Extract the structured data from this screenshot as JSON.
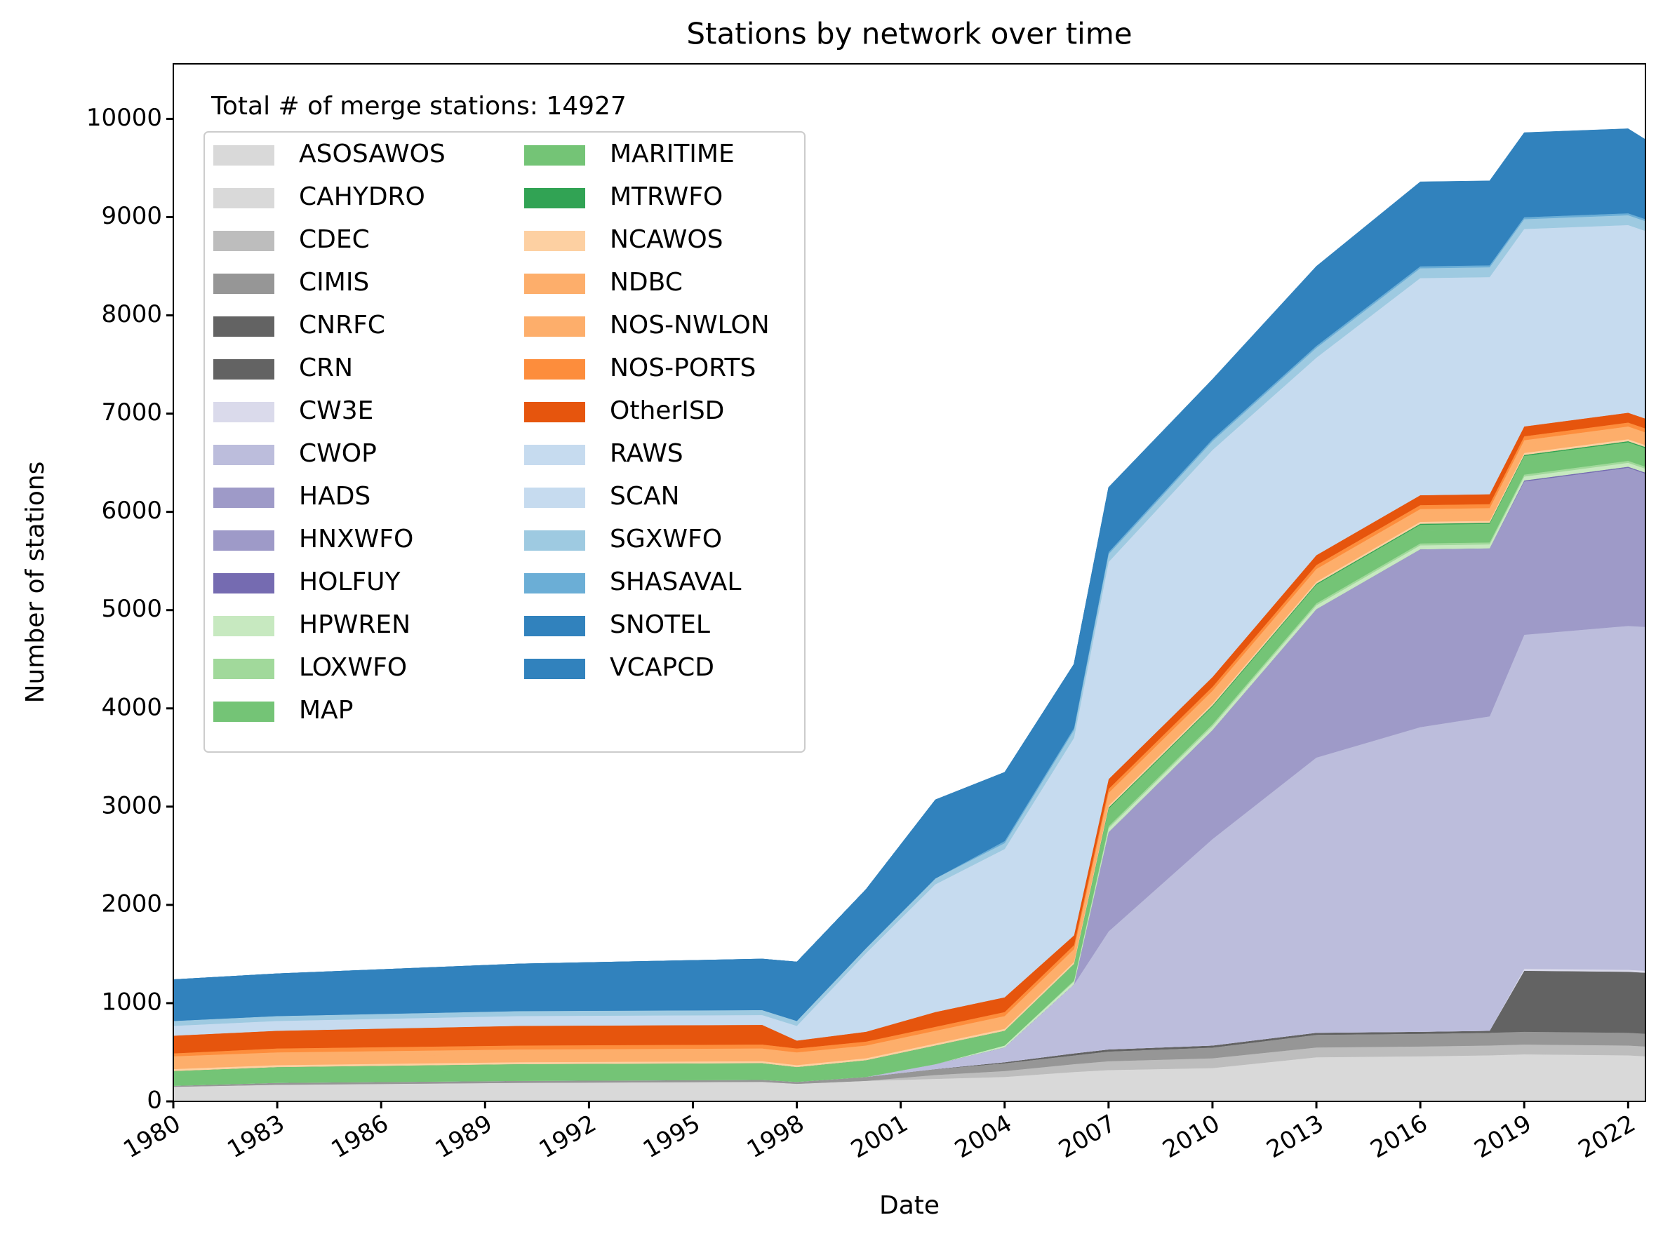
{
  "chart_data": {
    "type": "stacked_area",
    "title": "Stations by network over time",
    "xlabel": "Date",
    "ylabel": "Number of stations",
    "annotation": "Total # of merge stations: 14927",
    "legend": "upper left",
    "x": [
      1980,
      1983,
      1990,
      1997,
      1998,
      2000,
      2002,
      2004,
      2006,
      2007,
      2010,
      2013,
      2016,
      2018,
      2019,
      2022,
      2022.5
    ],
    "xlim": [
      1980,
      2022.5
    ],
    "xticks": [
      1980,
      1983,
      1986,
      1989,
      1992,
      1995,
      1998,
      2001,
      2004,
      2007,
      2010,
      2013,
      2016,
      2019,
      2022
    ],
    "ylim": [
      0,
      10560
    ],
    "yticks": [
      0,
      1000,
      2000,
      3000,
      4000,
      5000,
      6000,
      7000,
      8000,
      9000,
      10000
    ],
    "series": [
      {
        "name": "ASOSAWOS",
        "color": "#d9d9d9",
        "values": [
          150,
          170,
          190,
          200,
          180,
          210,
          230,
          250,
          300,
          320,
          340,
          440,
          450,
          460,
          470,
          460,
          450
        ]
      },
      {
        "name": "CAHYDRO",
        "color": "#d9d9d9",
        "values": [
          0,
          0,
          0,
          0,
          0,
          0,
          0,
          0,
          0,
          0,
          0,
          10,
          10,
          10,
          10,
          10,
          10
        ]
      },
      {
        "name": "CDEC",
        "color": "#bdbdbd",
        "values": [
          0,
          0,
          0,
          0,
          0,
          0,
          40,
          60,
          80,
          90,
          100,
          100,
          100,
          100,
          100,
          100,
          100
        ]
      },
      {
        "name": "CIMIS",
        "color": "#969696",
        "values": [
          10,
          20,
          20,
          20,
          20,
          40,
          60,
          80,
          90,
          100,
          110,
          130,
          130,
          130,
          130,
          130,
          130
        ]
      },
      {
        "name": "CNRFC",
        "color": "#636363",
        "values": [
          0,
          0,
          0,
          0,
          0,
          0,
          0,
          0,
          0,
          0,
          0,
          0,
          0,
          0,
          600,
          600,
          600
        ]
      },
      {
        "name": "CRN",
        "color": "#636363",
        "values": [
          0,
          0,
          0,
          0,
          0,
          0,
          0,
          10,
          20,
          20,
          20,
          20,
          20,
          20,
          20,
          20,
          20
        ]
      },
      {
        "name": "CW3E",
        "color": "#dadaeb",
        "values": [
          0,
          0,
          0,
          0,
          0,
          0,
          0,
          0,
          0,
          0,
          0,
          0,
          0,
          0,
          20,
          20,
          20
        ]
      },
      {
        "name": "CWOP",
        "color": "#bcbddc",
        "values": [
          0,
          0,
          0,
          0,
          0,
          0,
          50,
          150,
          700,
          1200,
          2100,
          2800,
          3100,
          3200,
          3400,
          3500,
          3500
        ]
      },
      {
        "name": "HADS",
        "color": "#9e9ac8",
        "values": [
          0,
          0,
          0,
          0,
          0,
          0,
          0,
          0,
          0,
          1000,
          1100,
          1500,
          1800,
          1700,
          1550,
          1600,
          1550
        ]
      },
      {
        "name": "HNXWFO",
        "color": "#9e9ac8",
        "values": [
          0,
          0,
          0,
          0,
          0,
          0,
          0,
          0,
          0,
          10,
          10,
          10,
          10,
          10,
          10,
          10,
          10
        ]
      },
      {
        "name": "HOLFUY",
        "color": "#756bb1",
        "values": [
          0,
          0,
          0,
          0,
          0,
          0,
          0,
          0,
          0,
          0,
          0,
          0,
          0,
          0,
          10,
          10,
          10
        ]
      },
      {
        "name": "HPWREN",
        "color": "#c7e9c0",
        "values": [
          0,
          0,
          0,
          0,
          0,
          0,
          0,
          20,
          30,
          40,
          40,
          40,
          40,
          40,
          40,
          40,
          40
        ]
      },
      {
        "name": "LOXWFO",
        "color": "#a1d99b",
        "values": [
          0,
          0,
          0,
          0,
          0,
          0,
          0,
          0,
          10,
          20,
          20,
          20,
          20,
          20,
          20,
          20,
          20
        ]
      },
      {
        "name": "MAP",
        "color": "#74c476",
        "values": [
          100,
          110,
          120,
          120,
          100,
          120,
          140,
          100,
          120,
          130,
          130,
          130,
          130,
          130,
          130,
          130,
          130
        ]
      },
      {
        "name": "MARITIME",
        "color": "#74c476",
        "values": [
          50,
          50,
          50,
          50,
          50,
          50,
          50,
          50,
          50,
          50,
          50,
          60,
          60,
          60,
          60,
          60,
          60
        ]
      },
      {
        "name": "MTRWFO",
        "color": "#31a354",
        "values": [
          0,
          0,
          0,
          0,
          0,
          0,
          0,
          0,
          0,
          10,
          10,
          10,
          10,
          10,
          10,
          10,
          10
        ]
      },
      {
        "name": "NCAWOS",
        "color": "#fdd0a2",
        "values": [
          20,
          20,
          20,
          20,
          20,
          20,
          20,
          20,
          20,
          20,
          20,
          20,
          20,
          20,
          20,
          20,
          20
        ]
      },
      {
        "name": "NDBC",
        "color": "#fdae6b",
        "values": [
          80,
          80,
          80,
          80,
          80,
          80,
          80,
          80,
          80,
          80,
          80,
          80,
          80,
          80,
          80,
          80,
          80
        ]
      },
      {
        "name": "NOS-NWLON",
        "color": "#fdae6b",
        "values": [
          50,
          50,
          50,
          50,
          50,
          50,
          50,
          50,
          50,
          50,
          50,
          50,
          50,
          50,
          50,
          50,
          50
        ]
      },
      {
        "name": "NOS-PORTS",
        "color": "#fd8d3c",
        "values": [
          30,
          40,
          40,
          40,
          40,
          40,
          40,
          40,
          40,
          40,
          40,
          40,
          40,
          40,
          40,
          40,
          40
        ]
      },
      {
        "name": "OtherISD",
        "color": "#e6550d",
        "values": [
          180,
          180,
          200,
          200,
          80,
          100,
          150,
          150,
          100,
          100,
          100,
          100,
          100,
          100,
          100,
          100,
          100
        ]
      },
      {
        "name": "RAWS",
        "color": "#c6dbef",
        "values": [
          100,
          100,
          100,
          100,
          150,
          800,
          1300,
          1500,
          2000,
          2200,
          2300,
          2000,
          2200,
          2200,
          2000,
          1900,
          1900
        ]
      },
      {
        "name": "SCAN",
        "color": "#c6dbef",
        "values": [
          0,
          0,
          0,
          0,
          0,
          0,
          0,
          10,
          10,
          10,
          10,
          10,
          10,
          10,
          10,
          10,
          10
        ]
      },
      {
        "name": "SGXWFO",
        "color": "#9ecae1",
        "values": [
          50,
          50,
          50,
          50,
          50,
          50,
          60,
          60,
          80,
          80,
          90,
          100,
          100,
          100,
          100,
          100,
          100
        ]
      },
      {
        "name": "SHASAVAL",
        "color": "#6baed6",
        "values": [
          0,
          0,
          0,
          0,
          0,
          0,
          0,
          20,
          20,
          20,
          20,
          20,
          20,
          20,
          20,
          20,
          20
        ]
      },
      {
        "name": "SNOTEL",
        "color": "#3182bd",
        "values": [
          420,
          430,
          480,
          520,
          600,
          600,
          800,
          700,
          650,
          650,
          600,
          800,
          850,
          850,
          850,
          850,
          800
        ]
      },
      {
        "name": "VCAPCD",
        "color": "#3182bd",
        "values": [
          0,
          0,
          0,
          0,
          0,
          0,
          0,
          0,
          0,
          10,
          10,
          10,
          10,
          10,
          10,
          10,
          10
        ]
      }
    ]
  }
}
